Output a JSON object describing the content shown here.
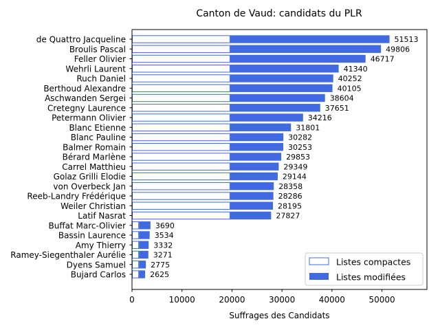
{
  "chart_data": {
    "type": "bar",
    "orientation": "horizontal",
    "stacked": true,
    "title": "Canton de Vaud: candidats du PLR",
    "xlabel": "Suffrages des Candidats",
    "ylabel": "",
    "xlim": [
      0,
      59000
    ],
    "xticks": [
      "0",
      "10000",
      "20000",
      "30000",
      "40000",
      "50000"
    ],
    "grid": false,
    "legend_position": "lower-right",
    "colors": {
      "modified": "#4169E1",
      "compact_edge": "#4169E1",
      "compact_fill": "#ffffff"
    },
    "categories": [
      "de Quattro Jacqueline",
      "Broulis Pascal",
      "Feller Olivier",
      "Wehrli Laurent",
      "Ruch Daniel",
      "Berthoud Alexandre",
      "Aschwanden Sergei",
      "Cretegny Laurence",
      "Petermann Olivier",
      "Blanc Etienne",
      "Blanc Pauline",
      "Balmer Romain",
      "Bérard Marlène",
      "Carrel Matthieu",
      "Golaz Grilli Elodie",
      "von Overbeck Jan",
      "Reeb-Landry Frédérique",
      "Weiler Christian",
      "Latif Nasrat",
      "Buffat Marc-Olivier",
      "Bassin Laurence",
      "Amy Thierry",
      "Ramey-Siegenthaler Aurélie",
      "Dyens Samuel",
      "Bujard Carlos"
    ],
    "totals": [
      "51513",
      "49806",
      "46717",
      "41340",
      "40252",
      "40105",
      "38604",
      "37651",
      "34216",
      "31801",
      "30282",
      "30253",
      "29853",
      "29349",
      "29144",
      "28358",
      "28286",
      "28195",
      "27827",
      "3690",
      "3534",
      "3332",
      "3271",
      "2775",
      "2625"
    ],
    "series": [
      {
        "name": "Listes compactes",
        "values": [
          19650,
          19650,
          19650,
          19650,
          19650,
          19650,
          19650,
          19650,
          19650,
          19650,
          19650,
          19650,
          19650,
          19650,
          19650,
          19650,
          19650,
          19650,
          19650,
          1400,
          1400,
          1400,
          1400,
          1400,
          1400
        ]
      },
      {
        "name": "Listes modifiées",
        "values": [
          31863,
          30156,
          27067,
          21690,
          20602,
          20455,
          18954,
          18001,
          14566,
          12151,
          10632,
          10603,
          10203,
          9699,
          9494,
          8708,
          8636,
          8545,
          8177,
          2290,
          2134,
          1932,
          1871,
          1375,
          1225
        ]
      }
    ]
  }
}
